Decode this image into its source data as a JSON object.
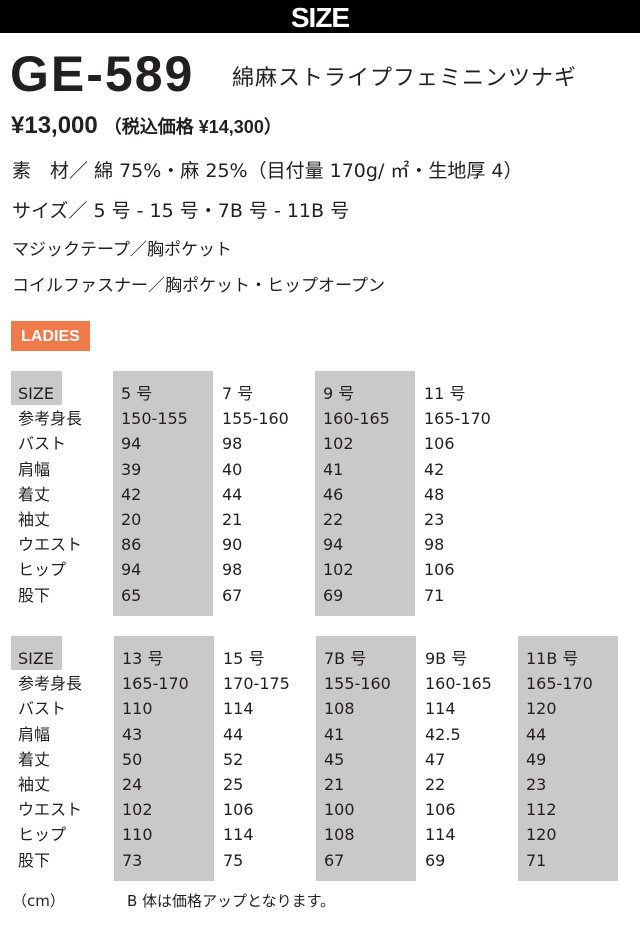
{
  "header": {
    "title": "SIZE"
  },
  "product": {
    "code": "GE-589",
    "name": "綿麻ストライプフェミニンツナギ",
    "price": "¥13,000",
    "price_tax": "（税込価格 ¥14,300）",
    "material": "素　材／ 綿 75%・麻 25%（目付量 170g/ ㎡・生地厚 4）",
    "sizes": "サイズ／ 5 号 - 15 号・7B 号 - 11B 号",
    "feature1": "マジックテープ／胸ポケット",
    "feature2": "コイルファスナー／胸ポケット・ヒップオープン"
  },
  "badge": "LADIES",
  "colors": {
    "accent": "#ef7a4a",
    "shade": "#c9c9c9"
  },
  "row_labels": [
    "SIZE",
    "参考身長",
    "バスト",
    "肩幅",
    "着丈",
    "袖丈",
    "ウエスト",
    "ヒップ",
    "股下"
  ],
  "tables": [
    {
      "columns": [
        {
          "shaded": true,
          "values": [
            "5 号",
            "150-155",
            "94",
            "39",
            "42",
            "20",
            "86",
            "94",
            "65"
          ]
        },
        {
          "shaded": false,
          "values": [
            "7 号",
            "155-160",
            "98",
            "40",
            "44",
            "21",
            "90",
            "98",
            "67"
          ]
        },
        {
          "shaded": true,
          "values": [
            "9 号",
            "160-165",
            "102",
            "41",
            "46",
            "22",
            "94",
            "102",
            "69"
          ]
        },
        {
          "shaded": false,
          "values": [
            "11 号",
            "165-170",
            "106",
            "42",
            "48",
            "23",
            "98",
            "106",
            "71"
          ]
        }
      ]
    },
    {
      "columns": [
        {
          "shaded": true,
          "values": [
            "13 号",
            "165-170",
            "110",
            "43",
            "50",
            "24",
            "102",
            "110",
            "73"
          ]
        },
        {
          "shaded": false,
          "values": [
            "15 号",
            "170-175",
            "114",
            "44",
            "52",
            "25",
            "106",
            "114",
            "75"
          ]
        },
        {
          "shaded": true,
          "values": [
            "7B 号",
            "155-160",
            "108",
            "41",
            "45",
            "21",
            "100",
            "108",
            "67"
          ]
        },
        {
          "shaded": false,
          "values": [
            "9B 号",
            "160-165",
            "114",
            "42.5",
            "47",
            "22",
            "106",
            "114",
            "69"
          ]
        },
        {
          "shaded": true,
          "values": [
            "11B 号",
            "165-170",
            "120",
            "44",
            "49",
            "23",
            "112",
            "120",
            "71"
          ]
        }
      ]
    }
  ],
  "footer": {
    "unit": "（cm）",
    "note": "B 体は価格アップとなります。"
  }
}
